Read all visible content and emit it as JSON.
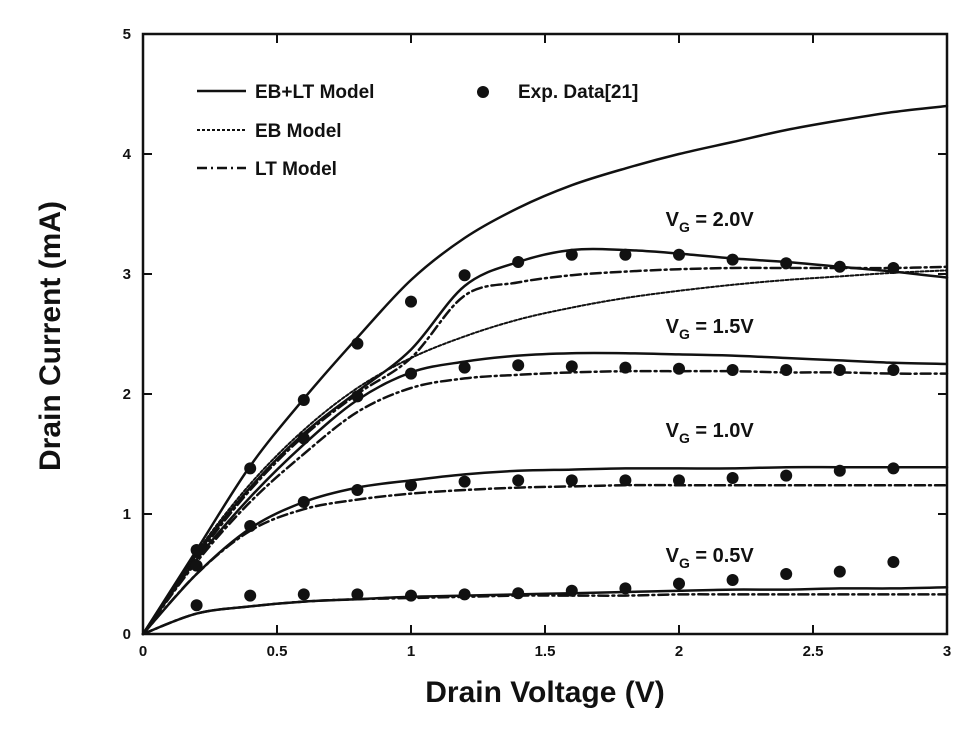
{
  "chart_data": {
    "type": "line",
    "xlabel": "Drain Voltage (V)",
    "ylabel": "Drain Current (mA)",
    "xlim": [
      0,
      3
    ],
    "ylim": [
      0,
      5
    ],
    "x_ticks": [
      "0",
      "0.5",
      "1",
      "1.5",
      "2",
      "2.5",
      "3"
    ],
    "y_ticks": [
      "0",
      "1",
      "2",
      "3",
      "4",
      "5"
    ],
    "grid": false,
    "legend_position": "top-left",
    "legend": {
      "eb_lt": "EB+LT Model",
      "eb": "EB Model",
      "lt": "LT Model",
      "exp": "Exp. Data[21]"
    },
    "curve_labels": [
      {
        "main": "V",
        "sub": "G",
        "tail": " = 2.0V",
        "at": [
          1.95,
          3.4
        ]
      },
      {
        "main": "V",
        "sub": "G",
        "tail": " = 1.5V",
        "at": [
          1.95,
          2.51
        ]
      },
      {
        "main": "V",
        "sub": "G",
        "tail": " = 1.0V",
        "at": [
          1.95,
          1.64
        ]
      },
      {
        "main": "V",
        "sub": "G",
        "tail": " = 0.5V",
        "at": [
          1.95,
          0.6
        ]
      }
    ],
    "x": [
      0,
      0.2,
      0.4,
      0.6,
      0.8,
      1.0,
      1.2,
      1.4,
      1.6,
      1.8,
      2.0,
      2.2,
      2.4,
      2.6,
      2.8,
      3.0
    ],
    "series": [
      {
        "name": "EB+LT Model",
        "vg": "2.0V",
        "style": "solid",
        "values": [
          0,
          0.7,
          1.4,
          1.96,
          2.47,
          2.95,
          3.3,
          3.55,
          3.74,
          3.88,
          4.0,
          4.1,
          4.2,
          4.28,
          4.35,
          4.4
        ]
      },
      {
        "name": "EB Model",
        "vg": "2.0V",
        "style": "dashed",
        "values": [
          0,
          0.68,
          1.25,
          1.7,
          2.05,
          2.3,
          2.48,
          2.62,
          2.72,
          2.8,
          2.86,
          2.91,
          2.95,
          2.98,
          3.01,
          3.03
        ]
      },
      {
        "name": "EB+LT Model",
        "vg": "2.0V",
        "style": "solid",
        "values": [
          0,
          0.66,
          1.22,
          1.67,
          2.02,
          2.37,
          2.9,
          3.1,
          3.2,
          3.2,
          3.17,
          3.13,
          3.1,
          3.06,
          3.02,
          2.97
        ]
      },
      {
        "name": "LT Model",
        "vg": "2.0V",
        "style": "dashdot",
        "values": [
          0,
          0.64,
          1.2,
          1.65,
          2.0,
          2.3,
          2.82,
          2.93,
          2.99,
          3.02,
          3.04,
          3.05,
          3.05,
          3.05,
          3.05,
          3.06
        ]
      },
      {
        "name": "EB+LT Model",
        "vg": "1.5V",
        "style": "solid",
        "values": [
          0,
          0.62,
          1.14,
          1.58,
          1.95,
          2.18,
          2.27,
          2.32,
          2.34,
          2.34,
          2.33,
          2.32,
          2.3,
          2.28,
          2.26,
          2.25
        ]
      },
      {
        "name": "LT Model",
        "vg": "1.5V",
        "style": "dashdot",
        "values": [
          0,
          0.6,
          1.1,
          1.5,
          1.85,
          2.05,
          2.13,
          2.16,
          2.18,
          2.19,
          2.19,
          2.19,
          2.18,
          2.18,
          2.17,
          2.17
        ]
      },
      {
        "name": "EB+LT Model",
        "vg": "1.0V",
        "style": "solid",
        "values": [
          0,
          0.5,
          0.88,
          1.1,
          1.22,
          1.28,
          1.33,
          1.36,
          1.37,
          1.38,
          1.38,
          1.38,
          1.39,
          1.39,
          1.39,
          1.39
        ]
      },
      {
        "name": "LT Model",
        "vg": "1.0V",
        "style": "dashdot",
        "values": [
          0,
          0.5,
          0.86,
          1.04,
          1.12,
          1.17,
          1.2,
          1.22,
          1.23,
          1.24,
          1.24,
          1.24,
          1.24,
          1.24,
          1.24,
          1.24
        ]
      },
      {
        "name": "EB+LT Model",
        "vg": "0.5V",
        "style": "solid",
        "values": [
          0,
          0.17,
          0.23,
          0.27,
          0.29,
          0.31,
          0.32,
          0.33,
          0.34,
          0.35,
          0.36,
          0.37,
          0.37,
          0.38,
          0.38,
          0.39
        ]
      },
      {
        "name": "LT Model",
        "vg": "0.5V",
        "style": "dashdot",
        "values": [
          0,
          0.17,
          0.23,
          0.27,
          0.29,
          0.3,
          0.31,
          0.32,
          0.32,
          0.32,
          0.33,
          0.33,
          0.33,
          0.33,
          0.33,
          0.33
        ]
      }
    ],
    "points": [
      {
        "name": "Exp. Data[21]",
        "vg": "2.0V",
        "x": [
          0.2,
          0.4,
          0.6,
          0.8,
          1.0,
          1.2,
          1.4,
          1.6,
          1.8,
          2.0,
          2.2,
          2.4,
          2.6,
          2.8
        ],
        "y": [
          0.7,
          1.38,
          1.95,
          2.42,
          2.77,
          2.99,
          3.1,
          3.16,
          3.16,
          3.16,
          3.12,
          3.09,
          3.06,
          3.05
        ]
      },
      {
        "name": "Exp. Data[21]",
        "vg": "1.5V",
        "x": [
          0.6,
          0.8,
          1.0,
          1.2,
          1.4,
          1.6,
          1.8,
          2.0,
          2.2,
          2.4,
          2.6,
          2.8
        ],
        "y": [
          1.63,
          1.98,
          2.17,
          2.22,
          2.24,
          2.23,
          2.22,
          2.21,
          2.2,
          2.2,
          2.2,
          2.2
        ]
      },
      {
        "name": "Exp. Data[21]",
        "vg": "1.0V",
        "x": [
          0.2,
          0.4,
          0.6,
          0.8,
          1.0,
          1.2,
          1.4,
          1.6,
          1.8,
          2.0,
          2.2,
          2.4,
          2.6,
          2.8
        ],
        "y": [
          0.57,
          0.9,
          1.1,
          1.2,
          1.24,
          1.27,
          1.28,
          1.28,
          1.28,
          1.28,
          1.3,
          1.32,
          1.36,
          1.38
        ]
      },
      {
        "name": "Exp. Data[21]",
        "vg": "0.5V",
        "x": [
          0.2,
          0.4,
          0.6,
          0.8,
          1.0,
          1.2,
          1.4,
          1.6,
          1.8,
          2.0,
          2.2,
          2.4,
          2.6,
          2.8
        ],
        "y": [
          0.24,
          0.32,
          0.33,
          0.33,
          0.32,
          0.33,
          0.34,
          0.36,
          0.38,
          0.42,
          0.45,
          0.5,
          0.52,
          0.6
        ]
      }
    ]
  }
}
